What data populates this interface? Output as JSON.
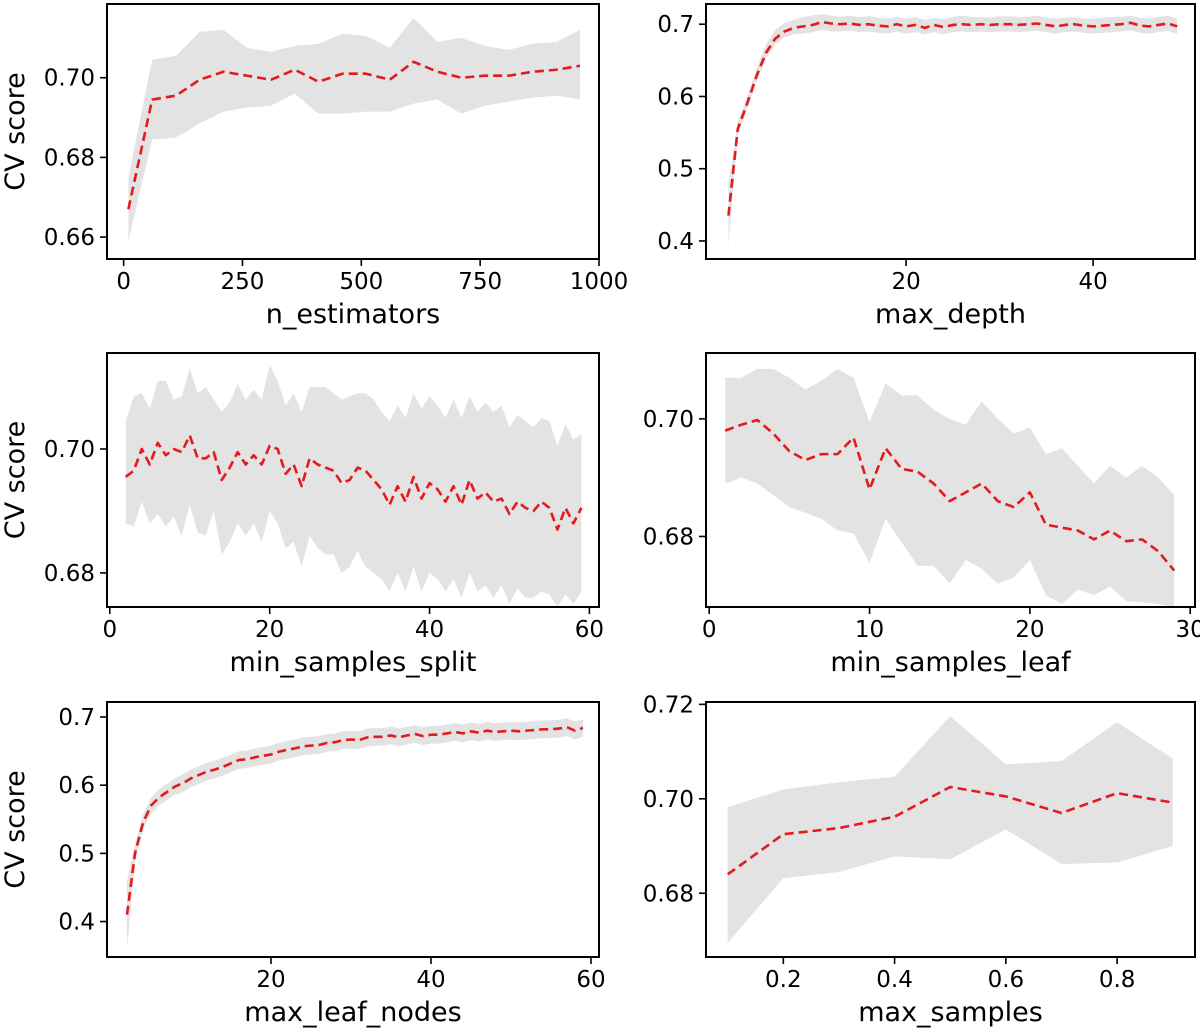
{
  "colors": {
    "line": "#e41a1c",
    "band": "#e3e3e3",
    "axes": "#000000"
  },
  "chart_data": [
    {
      "type": "line",
      "xlabel": "n_estimators",
      "ylabel": "CV score",
      "xlim": [
        -35,
        1000
      ],
      "ylim": [
        0.6545,
        0.7185
      ],
      "xticks": [
        0,
        250,
        500,
        750,
        1000
      ],
      "yticks": [
        0.66,
        0.68,
        0.7
      ],
      "xtick_labels": [
        "0",
        "250",
        "500",
        "750",
        "1000"
      ],
      "ytick_labels": [
        "0.66",
        "0.68",
        "0.70"
      ],
      "x": [
        10,
        60,
        110,
        160,
        210,
        260,
        310,
        360,
        410,
        460,
        510,
        560,
        610,
        660,
        710,
        760,
        810,
        860,
        910,
        960
      ],
      "mean": [
        0.667,
        0.6945,
        0.6955,
        0.6995,
        0.7015,
        0.7005,
        0.6995,
        0.702,
        0.699,
        0.701,
        0.701,
        0.6995,
        0.704,
        0.7015,
        0.7,
        0.7005,
        0.7005,
        0.7015,
        0.702,
        0.703
      ],
      "lower": [
        0.659,
        0.6845,
        0.685,
        0.6885,
        0.6915,
        0.6925,
        0.693,
        0.696,
        0.691,
        0.691,
        0.6915,
        0.6915,
        0.6935,
        0.6945,
        0.691,
        0.693,
        0.694,
        0.695,
        0.6955,
        0.6945
      ],
      "upper": [
        0.675,
        0.7045,
        0.7055,
        0.7115,
        0.712,
        0.7075,
        0.7065,
        0.708,
        0.7085,
        0.711,
        0.7105,
        0.7075,
        0.715,
        0.709,
        0.71,
        0.708,
        0.707,
        0.7085,
        0.709,
        0.712
      ]
    },
    {
      "type": "line",
      "xlabel": "max_depth",
      "ylabel": "",
      "xlim": [
        -1.4,
        50.9
      ],
      "ylim": [
        0.375,
        0.728
      ],
      "xticks": [
        20,
        40
      ],
      "yticks": [
        0.4,
        0.5,
        0.6,
        0.7
      ],
      "xtick_labels": [
        "20",
        "40"
      ],
      "ytick_labels": [
        "0.4",
        "0.5",
        "0.6",
        "0.7"
      ],
      "x": [
        1,
        2,
        3,
        4,
        5,
        6,
        7,
        8,
        9,
        10,
        11,
        12,
        13,
        14,
        15,
        16,
        17,
        18,
        19,
        20,
        21,
        22,
        23,
        24,
        25,
        26,
        27,
        28,
        29,
        30,
        31,
        32,
        33,
        34,
        35,
        36,
        37,
        38,
        39,
        40,
        41,
        42,
        43,
        44,
        45,
        46,
        47,
        48,
        49
      ],
      "mean": [
        0.435,
        0.555,
        0.59,
        0.628,
        0.66,
        0.68,
        0.69,
        0.695,
        0.697,
        0.699,
        0.703,
        0.701,
        0.7,
        0.701,
        0.699,
        0.7,
        0.698,
        0.697,
        0.7,
        0.697,
        0.699,
        0.695,
        0.699,
        0.696,
        0.699,
        0.7,
        0.699,
        0.7,
        0.699,
        0.7,
        0.7,
        0.699,
        0.7,
        0.701,
        0.699,
        0.697,
        0.699,
        0.7,
        0.698,
        0.697,
        0.698,
        0.699,
        0.7,
        0.702,
        0.698,
        0.697,
        0.699,
        0.701,
        0.697
      ],
      "lower": [
        0.393,
        0.548,
        0.583,
        0.62,
        0.652,
        0.672,
        0.682,
        0.686,
        0.687,
        0.689,
        0.692,
        0.69,
        0.69,
        0.691,
        0.689,
        0.69,
        0.688,
        0.687,
        0.69,
        0.687,
        0.689,
        0.686,
        0.689,
        0.686,
        0.689,
        0.69,
        0.689,
        0.69,
        0.689,
        0.69,
        0.69,
        0.689,
        0.69,
        0.691,
        0.689,
        0.687,
        0.689,
        0.69,
        0.688,
        0.687,
        0.688,
        0.689,
        0.69,
        0.692,
        0.688,
        0.687,
        0.689,
        0.691,
        0.687
      ],
      "upper": [
        0.478,
        0.565,
        0.6,
        0.638,
        0.672,
        0.692,
        0.702,
        0.706,
        0.71,
        0.712,
        0.714,
        0.712,
        0.71,
        0.712,
        0.71,
        0.711,
        0.709,
        0.708,
        0.71,
        0.708,
        0.71,
        0.706,
        0.709,
        0.707,
        0.71,
        0.712,
        0.71,
        0.71,
        0.709,
        0.711,
        0.711,
        0.71,
        0.71,
        0.712,
        0.709,
        0.708,
        0.709,
        0.71,
        0.708,
        0.708,
        0.709,
        0.71,
        0.71,
        0.712,
        0.709,
        0.708,
        0.71,
        0.712,
        0.708
      ]
    },
    {
      "type": "line",
      "xlabel": "min_samples_split",
      "ylabel": "CV score",
      "xlim": [
        -0.35,
        61.2
      ],
      "ylim": [
        0.6745,
        0.7155
      ],
      "xticks": [
        0,
        20,
        40,
        60
      ],
      "yticks": [
        0.68,
        0.7
      ],
      "xtick_labels": [
        "0",
        "20",
        "40",
        "60"
      ],
      "ytick_labels": [
        "0.68",
        "0.70"
      ],
      "x": [
        2,
        3,
        4,
        5,
        6,
        7,
        8,
        9,
        10,
        11,
        12,
        13,
        14,
        15,
        16,
        17,
        18,
        19,
        20,
        21,
        22,
        23,
        24,
        25,
        26,
        27,
        28,
        29,
        30,
        31,
        32,
        33,
        34,
        35,
        36,
        37,
        38,
        39,
        40,
        41,
        42,
        43,
        44,
        45,
        46,
        47,
        48,
        49,
        50,
        51,
        52,
        53,
        54,
        55,
        56,
        57,
        58,
        59
      ],
      "mean": [
        0.6955,
        0.6965,
        0.7,
        0.6975,
        0.701,
        0.699,
        0.7,
        0.6995,
        0.7022,
        0.6985,
        0.6985,
        0.6995,
        0.695,
        0.697,
        0.6995,
        0.6975,
        0.699,
        0.6975,
        0.7005,
        0.7,
        0.696,
        0.6975,
        0.694,
        0.6985,
        0.6975,
        0.697,
        0.6965,
        0.6945,
        0.695,
        0.697,
        0.6965,
        0.695,
        0.6935,
        0.691,
        0.694,
        0.6915,
        0.6955,
        0.692,
        0.6945,
        0.6935,
        0.6915,
        0.694,
        0.691,
        0.695,
        0.692,
        0.693,
        0.6915,
        0.692,
        0.6895,
        0.6915,
        0.6905,
        0.69,
        0.6915,
        0.6905,
        0.687,
        0.6905,
        0.688,
        0.6905
      ],
      "lower": [
        0.688,
        0.6875,
        0.6915,
        0.688,
        0.6895,
        0.6875,
        0.689,
        0.686,
        0.691,
        0.6865,
        0.686,
        0.69,
        0.683,
        0.685,
        0.688,
        0.686,
        0.688,
        0.685,
        0.69,
        0.688,
        0.684,
        0.685,
        0.681,
        0.686,
        0.684,
        0.683,
        0.683,
        0.68,
        0.681,
        0.6835,
        0.681,
        0.68,
        0.679,
        0.677,
        0.68,
        0.677,
        0.681,
        0.677,
        0.68,
        0.679,
        0.677,
        0.679,
        0.676,
        0.68,
        0.677,
        0.678,
        0.676,
        0.678,
        0.675,
        0.6775,
        0.676,
        0.676,
        0.677,
        0.6765,
        0.6745,
        0.6765,
        0.675,
        0.677
      ],
      "upper": [
        0.7045,
        0.7085,
        0.709,
        0.7065,
        0.711,
        0.711,
        0.708,
        0.7085,
        0.713,
        0.709,
        0.71,
        0.708,
        0.706,
        0.7075,
        0.7105,
        0.708,
        0.7095,
        0.708,
        0.7135,
        0.711,
        0.707,
        0.709,
        0.706,
        0.71,
        0.71,
        0.71,
        0.709,
        0.708,
        0.7085,
        0.709,
        0.709,
        0.708,
        0.706,
        0.7045,
        0.707,
        0.705,
        0.709,
        0.7065,
        0.7085,
        0.707,
        0.705,
        0.708,
        0.705,
        0.7085,
        0.706,
        0.7075,
        0.706,
        0.707,
        0.7035,
        0.7055,
        0.7045,
        0.7035,
        0.705,
        0.7045,
        0.7005,
        0.704,
        0.7015,
        0.7025
      ]
    },
    {
      "type": "line",
      "xlabel": "min_samples_leaf",
      "ylabel": "",
      "xlim": [
        -0.2,
        30.3
      ],
      "ylim": [
        0.668,
        0.7112
      ],
      "xticks": [
        0,
        10,
        20,
        30
      ],
      "yticks": [
        0.68,
        0.7
      ],
      "xtick_labels": [
        "0",
        "10",
        "20",
        "30"
      ],
      "ytick_labels": [
        "0.68",
        "0.70"
      ],
      "x": [
        1,
        2,
        3,
        4,
        5,
        6,
        7,
        8,
        9,
        10,
        11,
        12,
        13,
        14,
        15,
        16,
        17,
        18,
        19,
        20,
        21,
        22,
        23,
        24,
        25,
        26,
        27,
        28,
        29
      ],
      "mean": [
        0.698,
        0.699,
        0.6998,
        0.6975,
        0.6945,
        0.693,
        0.694,
        0.694,
        0.6968,
        0.688,
        0.695,
        0.6915,
        0.691,
        0.689,
        0.686,
        0.6875,
        0.689,
        0.686,
        0.685,
        0.6875,
        0.682,
        0.6815,
        0.681,
        0.6795,
        0.681,
        0.6792,
        0.6795,
        0.6775,
        0.6742
      ],
      "lower": [
        0.689,
        0.69,
        0.689,
        0.687,
        0.685,
        0.684,
        0.683,
        0.681,
        0.6805,
        0.6755,
        0.683,
        0.679,
        0.675,
        0.675,
        0.672,
        0.676,
        0.6745,
        0.672,
        0.673,
        0.676,
        0.67,
        0.6685,
        0.671,
        0.67,
        0.6715,
        0.669,
        0.6688,
        0.6685,
        0.668
      ],
      "upper": [
        0.707,
        0.707,
        0.7085,
        0.7085,
        0.707,
        0.705,
        0.7065,
        0.7085,
        0.707,
        0.6995,
        0.706,
        0.704,
        0.704,
        0.7015,
        0.7,
        0.699,
        0.703,
        0.7,
        0.6975,
        0.6985,
        0.694,
        0.695,
        0.692,
        0.689,
        0.692,
        0.69,
        0.692,
        0.69,
        0.687
      ]
    },
    {
      "type": "line",
      "xlabel": "max_leaf_nodes",
      "ylabel": "CV score",
      "xlim": [
        -0.5,
        61.0
      ],
      "ylim": [
        0.348,
        0.722
      ],
      "xticks": [
        20,
        40,
        60
      ],
      "yticks": [
        0.4,
        0.5,
        0.6,
        0.7
      ],
      "xtick_labels": [
        "20",
        "40",
        "60"
      ],
      "ytick_labels": [
        "0.4",
        "0.5",
        "0.6",
        "0.7"
      ],
      "x": [
        2,
        3,
        4,
        5,
        6,
        7,
        8,
        9,
        10,
        11,
        12,
        13,
        14,
        15,
        16,
        17,
        18,
        19,
        20,
        21,
        22,
        23,
        24,
        25,
        26,
        27,
        28,
        29,
        30,
        31,
        32,
        33,
        34,
        35,
        36,
        37,
        38,
        39,
        40,
        41,
        42,
        43,
        44,
        45,
        46,
        47,
        48,
        49,
        50,
        51,
        52,
        53,
        54,
        55,
        56,
        57,
        58,
        59
      ],
      "mean": [
        0.41,
        0.5,
        0.545,
        0.57,
        0.582,
        0.59,
        0.598,
        0.603,
        0.61,
        0.615,
        0.62,
        0.623,
        0.627,
        0.632,
        0.637,
        0.638,
        0.641,
        0.643,
        0.645,
        0.649,
        0.652,
        0.654,
        0.657,
        0.658,
        0.659,
        0.662,
        0.663,
        0.666,
        0.667,
        0.666,
        0.67,
        0.671,
        0.671,
        0.673,
        0.67,
        0.673,
        0.675,
        0.672,
        0.674,
        0.674,
        0.676,
        0.678,
        0.676,
        0.679,
        0.677,
        0.68,
        0.678,
        0.679,
        0.68,
        0.679,
        0.68,
        0.681,
        0.682,
        0.682,
        0.683,
        0.685,
        0.68,
        0.684
      ],
      "lower": [
        0.36,
        0.487,
        0.534,
        0.558,
        0.57,
        0.578,
        0.586,
        0.59,
        0.597,
        0.602,
        0.607,
        0.61,
        0.614,
        0.619,
        0.624,
        0.625,
        0.628,
        0.63,
        0.632,
        0.636,
        0.639,
        0.641,
        0.644,
        0.645,
        0.646,
        0.649,
        0.65,
        0.653,
        0.654,
        0.653,
        0.657,
        0.658,
        0.658,
        0.66,
        0.657,
        0.66,
        0.662,
        0.659,
        0.661,
        0.661,
        0.663,
        0.665,
        0.663,
        0.666,
        0.664,
        0.667,
        0.665,
        0.666,
        0.667,
        0.666,
        0.667,
        0.668,
        0.669,
        0.669,
        0.67,
        0.672,
        0.667,
        0.671
      ],
      "upper": [
        0.46,
        0.513,
        0.556,
        0.582,
        0.594,
        0.602,
        0.61,
        0.616,
        0.623,
        0.628,
        0.633,
        0.636,
        0.64,
        0.645,
        0.65,
        0.651,
        0.654,
        0.656,
        0.658,
        0.662,
        0.665,
        0.667,
        0.67,
        0.671,
        0.672,
        0.675,
        0.676,
        0.679,
        0.68,
        0.679,
        0.683,
        0.684,
        0.684,
        0.686,
        0.683,
        0.686,
        0.688,
        0.685,
        0.687,
        0.687,
        0.689,
        0.691,
        0.689,
        0.692,
        0.69,
        0.693,
        0.691,
        0.692,
        0.693,
        0.692,
        0.693,
        0.694,
        0.695,
        0.695,
        0.696,
        0.698,
        0.693,
        0.697
      ]
    },
    {
      "type": "line",
      "xlabel": "max_samples",
      "ylabel": "",
      "xlim": [
        0.061,
        0.94
      ],
      "ylim": [
        0.6665,
        0.7205
      ],
      "xticks": [
        0.2,
        0.4,
        0.6,
        0.8
      ],
      "yticks": [
        0.68,
        0.7,
        0.72
      ],
      "xtick_labels": [
        "0.2",
        "0.4",
        "0.6",
        "0.8"
      ],
      "ytick_labels": [
        "0.68",
        "0.70",
        "0.72"
      ],
      "x": [
        0.1,
        0.2,
        0.3,
        0.4,
        0.5,
        0.6,
        0.7,
        0.8,
        0.9
      ],
      "mean": [
        0.684,
        0.6925,
        0.6938,
        0.6962,
        0.7025,
        0.7005,
        0.697,
        0.7012,
        0.6992
      ],
      "lower": [
        0.6695,
        0.6832,
        0.6845,
        0.6878,
        0.6872,
        0.6935,
        0.6862,
        0.6865,
        0.69
      ],
      "upper": [
        0.6982,
        0.702,
        0.7035,
        0.7047,
        0.7175,
        0.7073,
        0.708,
        0.7162,
        0.7085
      ]
    }
  ]
}
